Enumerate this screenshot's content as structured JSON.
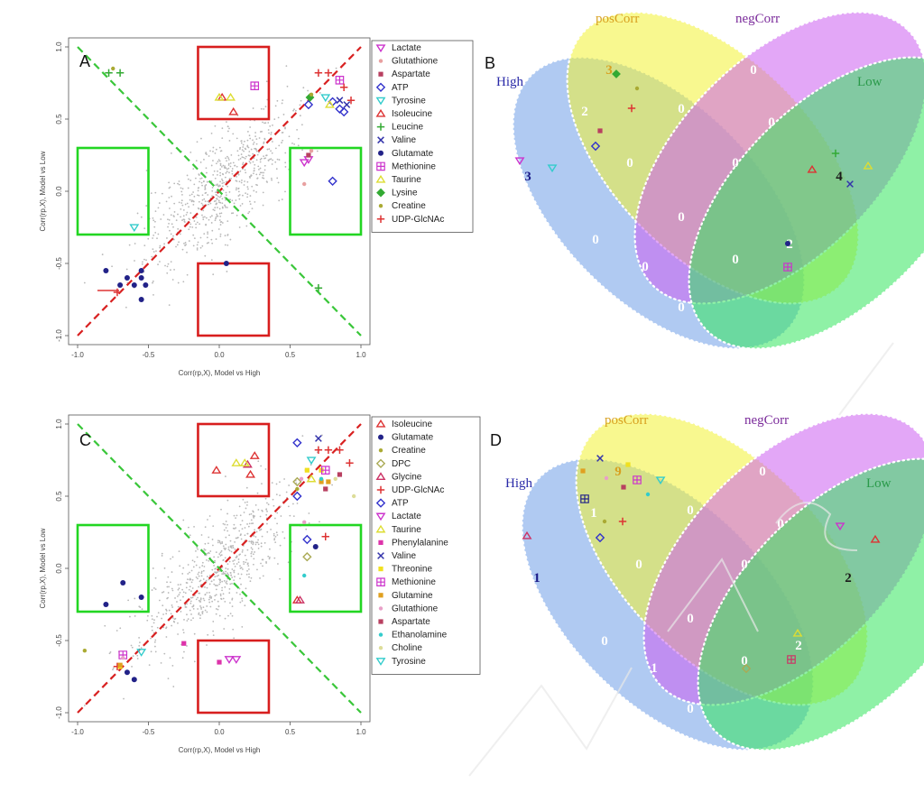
{
  "colors": {
    "green_box": "#22d622",
    "red_box": "#d81e1e",
    "diag_red": "#d82020",
    "diag_green": "#39c639",
    "venn_high": "#6f9fe8",
    "venn_pos": "#f2f233",
    "venn_neg": "#cc5ef0",
    "venn_low": "#33e65c"
  },
  "panels": {
    "A": {
      "letter": "A"
    },
    "B": {
      "letter": "B"
    },
    "C": {
      "letter": "C"
    },
    "D": {
      "letter": "D"
    }
  },
  "chart_data": [
    {
      "panel": "A",
      "type": "scatter",
      "xlabel": "Corr(rp,X), Model vs High",
      "ylabel": "Corr(rp,X), Model vs Low",
      "xlim": [
        -1.0,
        1.0
      ],
      "ylim": [
        -1.0,
        1.0
      ],
      "xticks": [
        "-1.0",
        "-0.5",
        "0.0",
        "0.5",
        "1.0"
      ],
      "yticks": [
        "1.0",
        "0.5",
        "0.0",
        "-0.5",
        "-1.0"
      ],
      "legend_position": "right",
      "series": [
        {
          "name": "Lactate",
          "color": "#cc33cc",
          "marker": "tri-down",
          "points": [
            [
              0.6,
              0.2
            ],
            [
              0.63,
              0.22
            ]
          ]
        },
        {
          "name": "Glutathione",
          "color": "#e8a0a0",
          "marker": "dot-small",
          "points": [
            [
              0.6,
              0.05
            ],
            [
              0.65,
              0.28
            ]
          ]
        },
        {
          "name": "Aspartate",
          "color": "#b84060",
          "marker": "square-small",
          "points": [
            [
              0.63,
              0.25
            ]
          ]
        },
        {
          "name": "ATP",
          "color": "#3333cc",
          "marker": "diamond",
          "points": [
            [
              0.63,
              0.6
            ],
            [
              0.8,
              0.62
            ],
            [
              0.85,
              0.57
            ],
            [
              0.88,
              0.55
            ],
            [
              0.8,
              0.07
            ]
          ]
        },
        {
          "name": "Tyrosine",
          "color": "#33cccc",
          "marker": "tri-down",
          "points": [
            [
              -0.6,
              -0.25
            ],
            [
              0.75,
              0.65
            ]
          ]
        },
        {
          "name": "Isoleucine",
          "color": "#dd3333",
          "marker": "triangle",
          "points": [
            [
              0.1,
              0.55
            ],
            [
              0.02,
              0.65
            ]
          ]
        },
        {
          "name": "Leucine",
          "color": "#33aa33",
          "marker": "plus",
          "points": [
            [
              -0.78,
              0.82
            ],
            [
              -0.7,
              0.82
            ],
            [
              0.7,
              -0.67
            ]
          ]
        },
        {
          "name": "Valine",
          "color": "#3333aa",
          "marker": "cross",
          "points": [
            [
              0.85,
              0.63
            ],
            [
              0.9,
              0.6
            ]
          ]
        },
        {
          "name": "Glutamate",
          "color": "#222288",
          "marker": "dot",
          "points": [
            [
              -0.8,
              -0.55
            ],
            [
              -0.7,
              -0.65
            ],
            [
              -0.65,
              -0.6
            ],
            [
              -0.6,
              -0.65
            ],
            [
              -0.55,
              -0.6
            ],
            [
              -0.55,
              -0.55
            ],
            [
              -0.52,
              -0.65
            ],
            [
              -0.55,
              -0.75
            ],
            [
              0.05,
              -0.5
            ]
          ]
        },
        {
          "name": "Methionine",
          "color": "#cc33cc",
          "marker": "hex",
          "points": [
            [
              0.85,
              0.77
            ],
            [
              0.25,
              0.73
            ]
          ]
        },
        {
          "name": "Taurine",
          "color": "#dddd33",
          "marker": "triangle",
          "points": [
            [
              0.0,
              0.65
            ],
            [
              0.08,
              0.65
            ],
            [
              0.78,
              0.6
            ]
          ]
        },
        {
          "name": "Lysine",
          "color": "#33aa33",
          "marker": "diamond-filled",
          "points": [
            [
              0.64,
              0.65
            ]
          ]
        },
        {
          "name": "Creatine",
          "color": "#aaaa33",
          "marker": "dot-small",
          "points": [
            [
              -0.75,
              0.85
            ],
            [
              0.65,
              0.67
            ]
          ]
        },
        {
          "name": "UDP-GlcNAc",
          "color": "#dd3333",
          "marker": "plus",
          "points": [
            [
              0.7,
              0.82
            ],
            [
              0.77,
              0.82
            ],
            [
              0.88,
              0.72
            ],
            [
              0.93,
              0.63
            ],
            [
              -0.72,
              -0.7
            ]
          ]
        }
      ]
    },
    {
      "panel": "B",
      "type": "venn",
      "sets": [
        "High",
        "posCorr",
        "negCorr",
        "Low"
      ],
      "region_counts": {
        "high_only": "3",
        "pos_only": "3",
        "neg_only": "0",
        "low_only": "4",
        "high_pos": "2",
        "pos_neg": "0",
        "neg_low": "0",
        "high_low": "0",
        "high_neg": "0",
        "pos_low": "2",
        "high_pos_neg": "0",
        "pos_neg_low": "0",
        "high_pos_low": "0",
        "high_neg_low": "0",
        "all_four": "0"
      }
    },
    {
      "panel": "C",
      "type": "scatter",
      "xlabel": "Corr(rp,X), Model vs High",
      "ylabel": "Corr(rp,X), Model vs Low",
      "xlim": [
        -1.0,
        1.0
      ],
      "ylim": [
        -1.0,
        1.0
      ],
      "xticks": [
        "-1.0",
        "-0.5",
        "0.0",
        "0.5",
        "1.0"
      ],
      "yticks": [
        "1.0",
        "0.5",
        "0.0",
        "-0.5",
        "-1.0"
      ],
      "legend_position": "right",
      "series": [
        {
          "name": "Isoleucine",
          "color": "#dd3333",
          "marker": "triangle",
          "points": [
            [
              -0.02,
              0.68
            ],
            [
              0.22,
              0.65
            ],
            [
              0.25,
              0.78
            ],
            [
              0.55,
              -0.22
            ]
          ]
        },
        {
          "name": "Glutamate",
          "color": "#222288",
          "marker": "dot",
          "points": [
            [
              -0.8,
              -0.25
            ],
            [
              -0.68,
              -0.1
            ],
            [
              -0.55,
              -0.2
            ],
            [
              -0.65,
              -0.72
            ],
            [
              -0.6,
              -0.77
            ],
            [
              0.68,
              0.15
            ]
          ]
        },
        {
          "name": "Creatine",
          "color": "#aaaa33",
          "marker": "dot-small",
          "points": [
            [
              -0.95,
              -0.57
            ],
            [
              0.55,
              0.55
            ]
          ]
        },
        {
          "name": "DPC",
          "color": "#aaaa55",
          "marker": "diamond",
          "points": [
            [
              0.55,
              0.6
            ],
            [
              0.62,
              0.08
            ]
          ]
        },
        {
          "name": "Glycine",
          "color": "#cc3366",
          "marker": "triangle",
          "points": [
            [
              0.2,
              0.72
            ],
            [
              0.57,
              -0.22
            ]
          ]
        },
        {
          "name": "UDP-GlcNAc",
          "color": "#dd3333",
          "marker": "plus",
          "points": [
            [
              0.7,
              0.82
            ],
            [
              0.77,
              0.82
            ],
            [
              0.85,
              0.82
            ],
            [
              0.92,
              0.73
            ],
            [
              0.75,
              0.22
            ],
            [
              -0.72,
              -0.68
            ]
          ]
        },
        {
          "name": "ATP",
          "color": "#3333cc",
          "marker": "diamond",
          "points": [
            [
              0.55,
              0.87
            ],
            [
              0.62,
              0.2
            ],
            [
              0.55,
              0.5
            ]
          ]
        },
        {
          "name": "Lactate",
          "color": "#cc33cc",
          "marker": "tri-down",
          "points": [
            [
              0.07,
              -0.63
            ],
            [
              0.12,
              -0.63
            ]
          ]
        },
        {
          "name": "Taurine",
          "color": "#dddd33",
          "marker": "triangle",
          "points": [
            [
              0.12,
              0.73
            ],
            [
              0.18,
              0.73
            ],
            [
              0.65,
              0.62
            ]
          ]
        },
        {
          "name": "Phenylalanine",
          "color": "#dd33aa",
          "marker": "square-small",
          "points": [
            [
              -0.25,
              -0.52
            ],
            [
              0.0,
              -0.65
            ]
          ]
        },
        {
          "name": "Valine",
          "color": "#3333aa",
          "marker": "cross",
          "points": [
            [
              0.7,
              0.9
            ]
          ]
        },
        {
          "name": "Threonine",
          "color": "#f0e020",
          "marker": "square-small",
          "points": [
            [
              0.62,
              0.68
            ],
            [
              0.72,
              0.68
            ],
            [
              -0.7,
              -0.68
            ]
          ]
        },
        {
          "name": "Methionine",
          "color": "#cc33cc",
          "marker": "hex",
          "points": [
            [
              0.75,
              0.68
            ],
            [
              -0.68,
              -0.6
            ]
          ]
        },
        {
          "name": "Glutamine",
          "color": "#e0a020",
          "marker": "square-small",
          "points": [
            [
              0.72,
              0.6
            ],
            [
              0.77,
              0.6
            ],
            [
              -0.7,
              -0.67
            ]
          ]
        },
        {
          "name": "Glutathione",
          "color": "#e8a0c8",
          "marker": "dot-small",
          "points": [
            [
              0.58,
              0.62
            ],
            [
              0.6,
              0.32
            ],
            [
              -0.68,
              -0.62
            ]
          ]
        },
        {
          "name": "Aspartate",
          "color": "#b84060",
          "marker": "square-small",
          "points": [
            [
              0.85,
              0.65
            ],
            [
              0.75,
              0.55
            ]
          ]
        },
        {
          "name": "Ethanolamine",
          "color": "#33cccc",
          "marker": "dot-small",
          "points": [
            [
              0.72,
              0.62
            ],
            [
              0.6,
              -0.05
            ]
          ]
        },
        {
          "name": "Choline",
          "color": "#dddd99",
          "marker": "dot-small",
          "points": [
            [
              0.82,
              0.62
            ],
            [
              0.95,
              0.5
            ]
          ]
        },
        {
          "name": "Tyrosine",
          "color": "#33cccc",
          "marker": "tri-down",
          "points": [
            [
              0.65,
              0.75
            ],
            [
              -0.55,
              -0.58
            ]
          ]
        }
      ]
    },
    {
      "panel": "D",
      "type": "venn",
      "sets": [
        "High",
        "posCorr",
        "negCorr",
        "Low"
      ],
      "region_counts": {
        "high_only": "1",
        "pos_only": "9",
        "neg_only": "0",
        "low_only": "2",
        "high_pos": "1",
        "pos_neg": "0",
        "neg_low": "0",
        "high_low": "0",
        "high_neg": "0",
        "pos_low": "2",
        "high_pos_neg": "0",
        "pos_neg_low": "0",
        "high_pos_low": "1",
        "high_neg_low": "0",
        "all_four": "0"
      }
    }
  ]
}
